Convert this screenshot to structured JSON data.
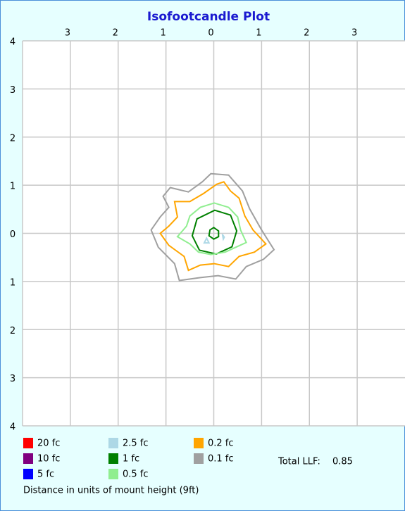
{
  "chart_data": {
    "type": "contour",
    "title": "Isofootcandle Plot",
    "xlim": [
      -4,
      4
    ],
    "ylim": [
      -4,
      4
    ],
    "xticks": [
      {
        "value": -3,
        "label": "3"
      },
      {
        "value": -2,
        "label": "2"
      },
      {
        "value": -1,
        "label": "1"
      },
      0,
      1,
      2,
      3
    ],
    "yticks": [
      {
        "value": -4,
        "label": "4"
      },
      {
        "value": -3,
        "label": "3"
      },
      {
        "value": -2,
        "label": "2"
      },
      {
        "value": -1,
        "label": "1"
      },
      0,
      1,
      2,
      3,
      4
    ],
    "grid": true,
    "series": [
      {
        "name": "20 fc",
        "color": "#ff0000",
        "contours": []
      },
      {
        "name": "10 fc",
        "color": "#800080",
        "contours": []
      },
      {
        "name": "5 fc",
        "color": "#0000ff",
        "contours": []
      },
      {
        "name": "2.5 fc",
        "color": "#add8e6",
        "contours": [
          {
            "x": [
              -0.15,
              -0.1,
              -0.2
            ],
            "y": [
              -0.1,
              -0.2,
              -0.2
            ]
          },
          {
            "x": [
              0.18,
              0.22,
              0.2
            ],
            "y": [
              -0.02,
              -0.08,
              -0.12
            ]
          }
        ]
      },
      {
        "name": "1 fc",
        "color": "#008000",
        "contours": [
          {
            "x": [
              0.02,
              0.35,
              0.48,
              0.38,
              0.05,
              -0.3,
              -0.45,
              -0.35
            ],
            "y": [
              0.48,
              0.38,
              0.05,
              -0.28,
              -0.43,
              -0.35,
              -0.05,
              0.3
            ]
          },
          {
            "x": [
              0,
              0.1,
              0.1,
              0,
              -0.1,
              -0.08
            ],
            "y": [
              0.12,
              0.05,
              -0.07,
              -0.12,
              -0.05,
              0.07
            ]
          }
        ]
      },
      {
        "name": "0.5 fc",
        "color": "#90ee90",
        "contours": [
          {
            "x": [
              0.01,
              0.31,
              0.5,
              0.56,
              0.68,
              0.46,
              0.24,
              -0.06,
              -0.32,
              -0.5,
              -0.76,
              -0.57,
              -0.5,
              -0.28
            ],
            "y": [
              0.63,
              0.54,
              0.34,
              0.07,
              -0.19,
              -0.29,
              -0.39,
              -0.44,
              -0.39,
              -0.22,
              -0.07,
              0.15,
              0.36,
              0.54
            ]
          }
        ]
      },
      {
        "name": "0.2 fc",
        "color": "#ffa500",
        "contours": [
          {
            "x": [
              0.21,
              0.35,
              0.53,
              0.65,
              0.82,
              1.09,
              0.85,
              0.53,
              0.31,
              0.01,
              -0.28,
              -0.53,
              -0.62,
              -0.94,
              -1.12,
              -0.94,
              -0.76,
              -0.82,
              -0.5,
              -0.21,
              0.06
            ],
            "y": [
              1.07,
              0.88,
              0.73,
              0.36,
              0.07,
              -0.22,
              -0.39,
              -0.48,
              -0.69,
              -0.63,
              -0.66,
              -0.77,
              -0.48,
              -0.25,
              0,
              0.15,
              0.34,
              0.66,
              0.66,
              0.83,
              1.02
            ]
          }
        ]
      },
      {
        "name": "0.1 fc",
        "color": "#a0a0a0",
        "contours": [
          {
            "x": [
              -0.06,
              0.31,
              0.6,
              0.75,
              1.0,
              1.26,
              1.04,
              0.68,
              0.46,
              0.09,
              -0.28,
              -0.72,
              -0.82,
              -1.16,
              -1.31,
              -1.12,
              -0.94,
              -1.06,
              -0.91,
              -0.53,
              -0.24
            ],
            "y": [
              1.24,
              1.21,
              0.88,
              0.51,
              0.07,
              -0.34,
              -0.54,
              -0.69,
              -0.95,
              -0.88,
              -0.92,
              -0.98,
              -0.63,
              -0.29,
              0.07,
              0.34,
              0.54,
              0.77,
              0.95,
              0.86,
              1.07
            ]
          }
        ]
      }
    ],
    "llf_label": "Total LLF:",
    "llf": 0.85,
    "footer": "Distance in units of mount height (9ft)"
  }
}
